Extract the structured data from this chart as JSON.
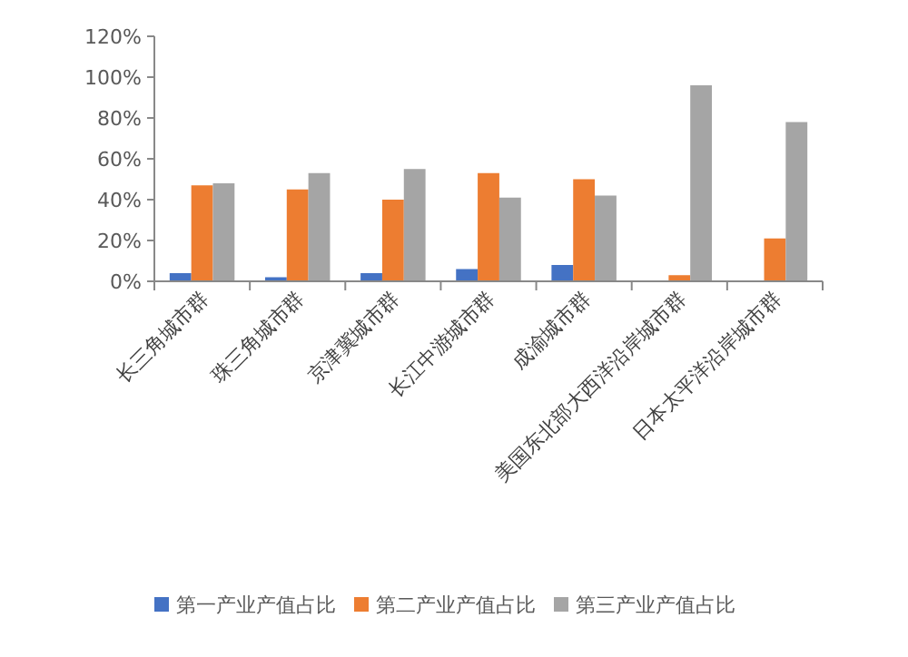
{
  "chart_data": {
    "type": "bar",
    "categories": [
      "长三角城市群",
      "珠三角城市群",
      "京津冀城市群",
      "长江中游城市群",
      "成渝城市群",
      "美国东北部大西洋沿岸城市群",
      "日本太平洋沿岸城市群"
    ],
    "series": [
      {
        "name": "第一产业产值占比",
        "color": "#4472c4",
        "values": [
          4,
          2,
          4,
          6,
          8,
          null,
          0
        ]
      },
      {
        "name": "第二产业产值占比",
        "color": "#ed7d31",
        "values": [
          47,
          45,
          40,
          53,
          50,
          3,
          21
        ]
      },
      {
        "name": "第三产业产值占比",
        "color": "#a5a5a5",
        "values": [
          48,
          53,
          55,
          41,
          42,
          96,
          78
        ]
      }
    ],
    "ylim": [
      0,
      120
    ],
    "yticks": [
      {
        "value": 0,
        "label": "0%"
      },
      {
        "value": 20,
        "label": "20%"
      },
      {
        "value": 40,
        "label": "40%"
      },
      {
        "value": 60,
        "label": "60%"
      },
      {
        "value": 80,
        "label": "80%"
      },
      {
        "value": 100,
        "label": "100%"
      },
      {
        "value": 120,
        "label": "120%"
      }
    ],
    "grid": false,
    "legend": "bottom"
  }
}
